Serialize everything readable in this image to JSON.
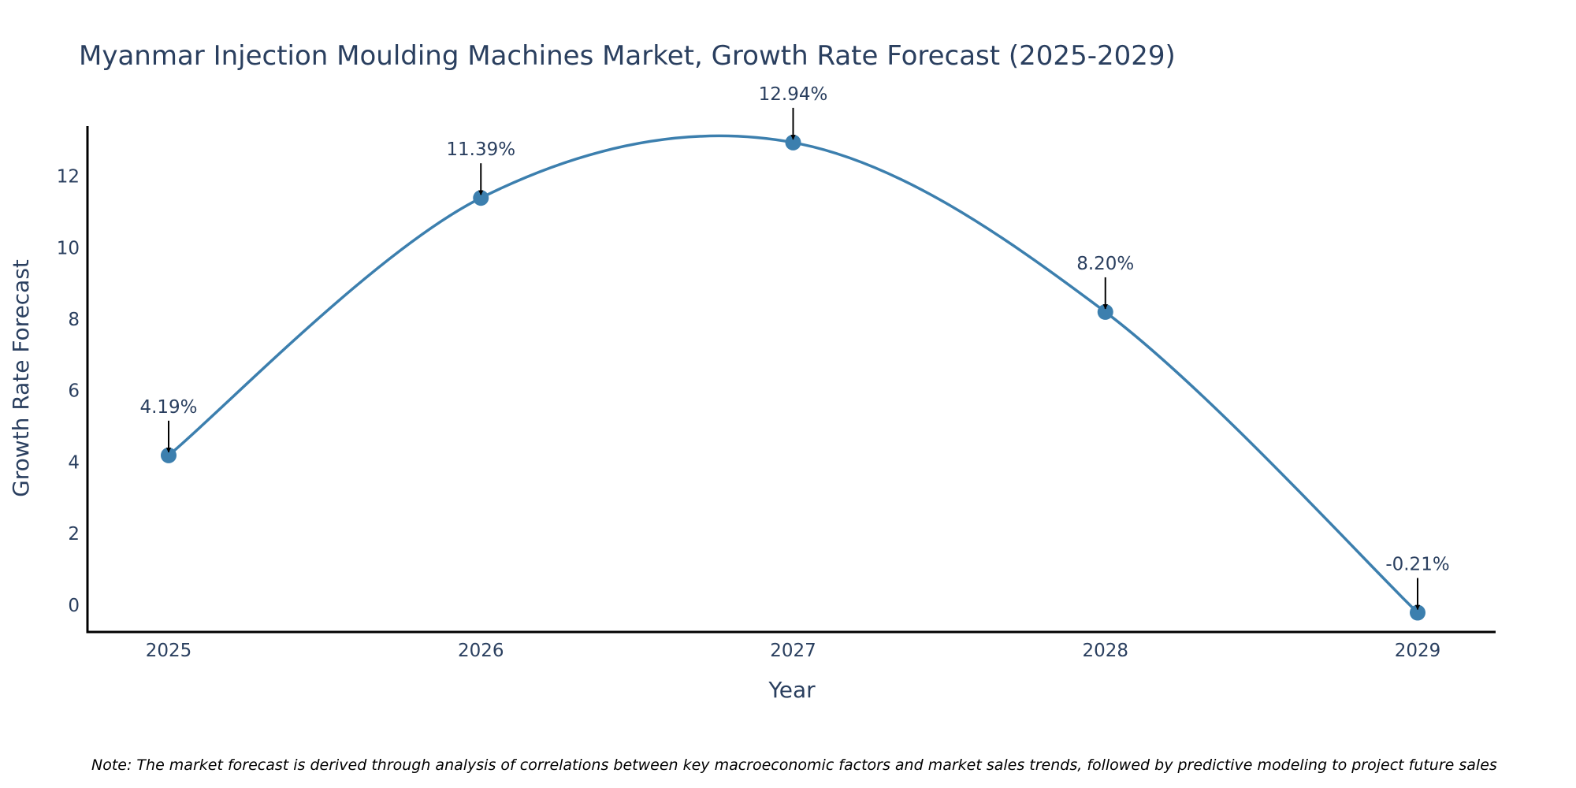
{
  "chart_data": {
    "type": "line",
    "title": "Myanmar Injection Moulding Machines Market, Growth Rate Forecast (2025-2029)",
    "xlabel": "Year",
    "ylabel": "Growth Rate Forecast",
    "x": [
      "2025",
      "2026",
      "2027",
      "2028",
      "2029"
    ],
    "series": [
      {
        "values": [
          4.19,
          11.39,
          12.94,
          8.2,
          -0.21
        ],
        "data_labels": [
          "4.19%",
          "11.39%",
          "12.94%",
          "8.20%",
          "-0.21%"
        ]
      }
    ],
    "ylim": [
      -0.75,
      13.4
    ],
    "yticks": [
      0,
      2,
      4,
      6,
      8,
      10,
      12
    ],
    "line_shape": "spline",
    "grid": false,
    "line_color": "#3c7fae",
    "marker_color": "#3c7fae",
    "annotation_arrow_color": "#000000",
    "text_color": "#2a3f5f",
    "note": "Note: The market forecast is derived through analysis of correlations between key macroeconomic factors and market sales trends, followed by predictive modeling to project future sales"
  }
}
